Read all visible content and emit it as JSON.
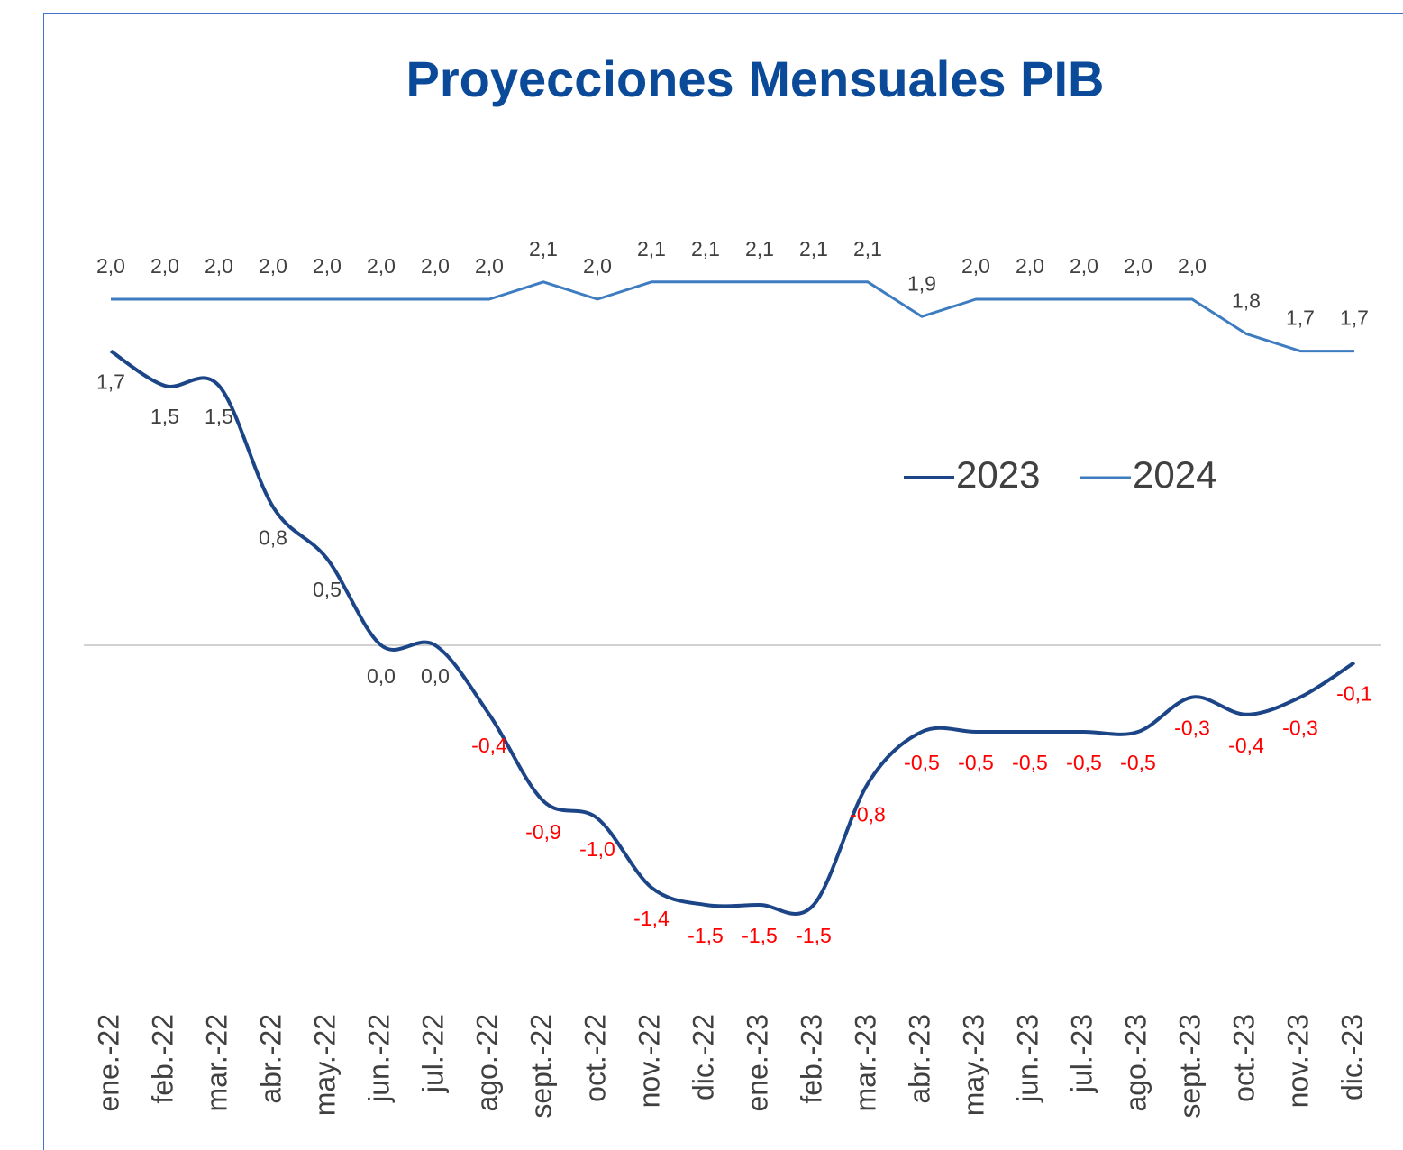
{
  "chart_data": {
    "type": "line",
    "title": "Proyecciones Mensuales PIB",
    "categories": [
      "ene.-22",
      "feb.-22",
      "mar.-22",
      "abr.-22",
      "may.-22",
      "jun.-22",
      "jul.-22",
      "ago.-22",
      "sept.-22",
      "oct.-22",
      "nov.-22",
      "dic.-22",
      "ene.-23",
      "feb.-23",
      "mar.-23",
      "abr.-23",
      "may.-23",
      "jun.-23",
      "jul.-23",
      "ago.-23",
      "sept.-23",
      "oct.-23",
      "nov.-23",
      "dic.-23"
    ],
    "series": [
      {
        "name": "2023",
        "color": "#1c4587",
        "smooth": true,
        "values": [
          1.7,
          1.5,
          1.5,
          0.8,
          0.5,
          0.0,
          0.0,
          -0.4,
          -0.9,
          -1.0,
          -1.4,
          -1.5,
          -1.5,
          -1.5,
          -0.8,
          -0.5,
          -0.5,
          -0.5,
          -0.5,
          -0.5,
          -0.3,
          -0.4,
          -0.3,
          -0.1
        ],
        "value_labels": [
          "1,7",
          "1,5",
          "1,5",
          "0,8",
          "0,5",
          "0,0",
          "0,0",
          "-0,4",
          "-0,9",
          "-1,0",
          "-1,4",
          "-1,5",
          "-1,5",
          "-1,5",
          "-0,8",
          "-0,5",
          "-0,5",
          "-0,5",
          "-0,5",
          "-0,5",
          "-0,3",
          "-0,4",
          "-0,3",
          "-0,1"
        ]
      },
      {
        "name": "2024",
        "color": "#3d7cc0",
        "smooth": false,
        "values": [
          2.0,
          2.0,
          2.0,
          2.0,
          2.0,
          2.0,
          2.0,
          2.0,
          2.1,
          2.0,
          2.1,
          2.1,
          2.1,
          2.1,
          2.1,
          1.9,
          2.0,
          2.0,
          2.0,
          2.0,
          2.0,
          1.8,
          1.7,
          1.7
        ],
        "value_labels": [
          "2,0",
          "2,0",
          "2,0",
          "2,0",
          "2,0",
          "2,0",
          "2,0",
          "2,0",
          "2,1",
          "2,0",
          "2,1",
          "2,1",
          "2,1",
          "2,1",
          "2,1",
          "1,9",
          "2,0",
          "2,0",
          "2,0",
          "2,0",
          "2,0",
          "1,8",
          "1,7",
          "1,7"
        ]
      }
    ],
    "ylim": [
      -2,
      3
    ],
    "label_colors": {
      "positive": "#404040",
      "negative": "#ff0000"
    },
    "legend": "right"
  }
}
